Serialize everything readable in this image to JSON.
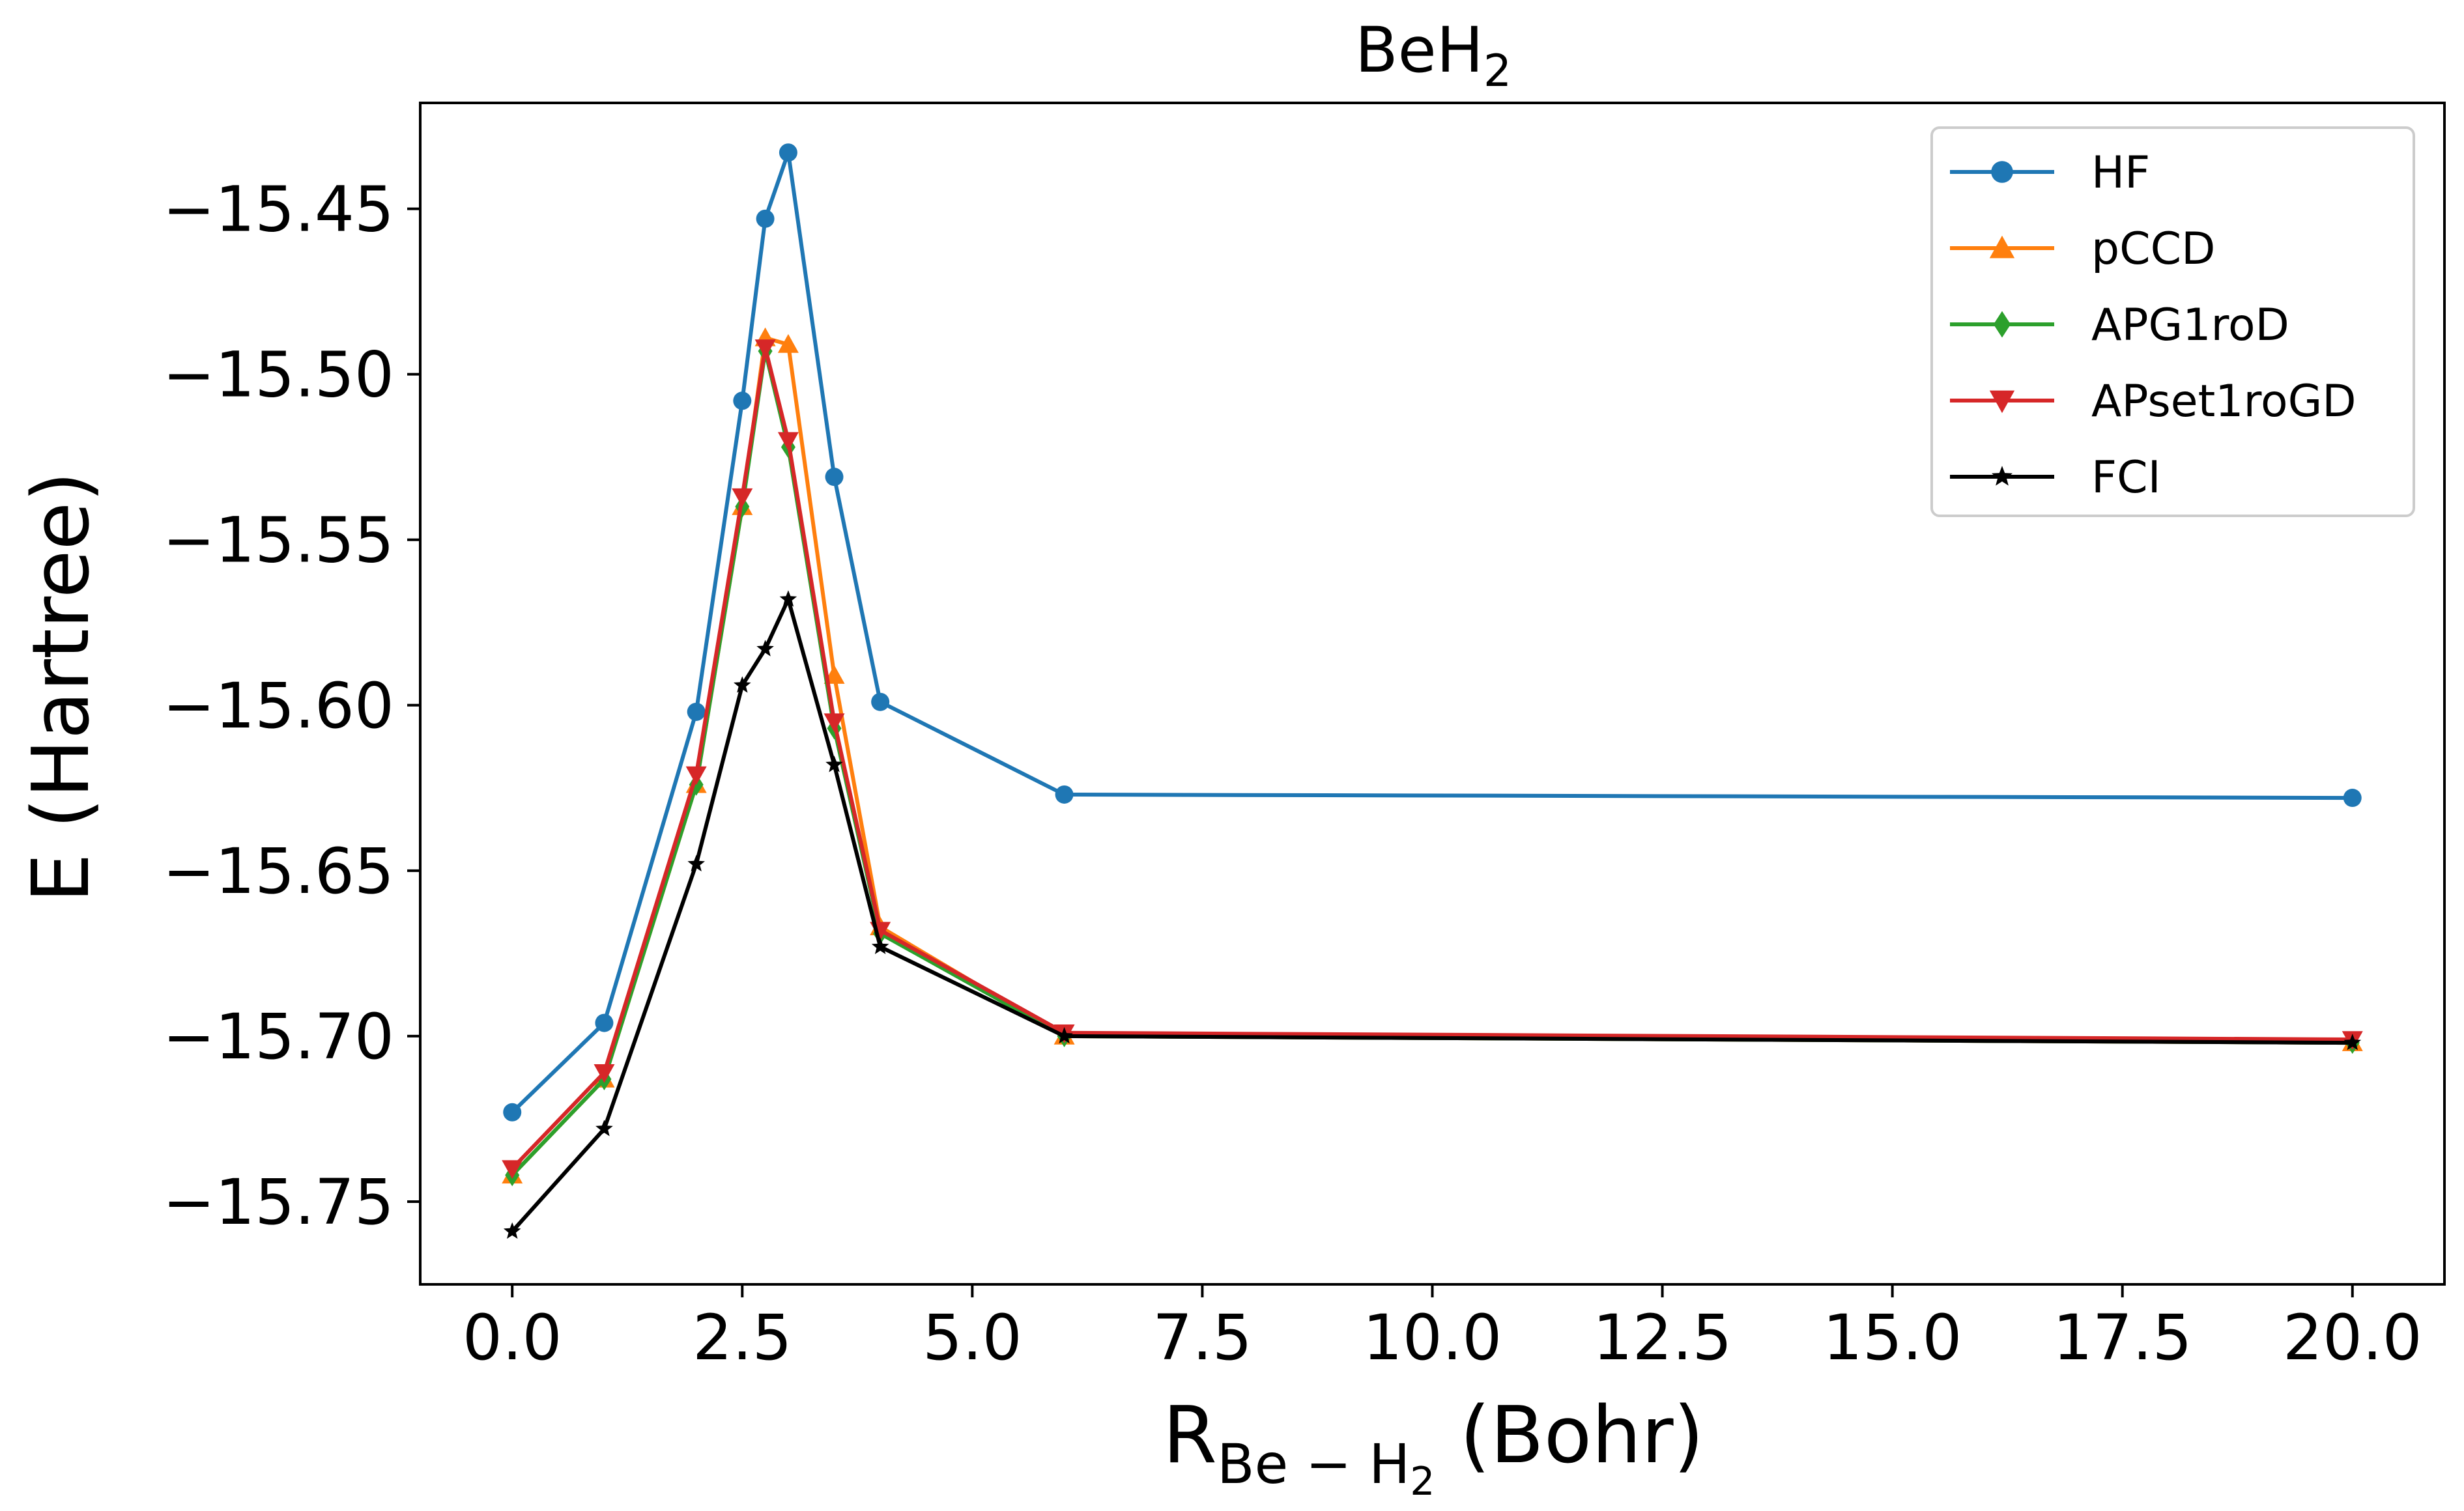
{
  "chart_data": {
    "type": "line",
    "title": "BeH",
    "title_sub": "2",
    "xlabel_main": "R",
    "xlabel_sub_text": "Be − H",
    "xlabel_sub_sub": "2",
    "xlabel_tail": " (Bohr)",
    "ylabel": "E (Hartree)",
    "xlim": [
      -1.0,
      21.0
    ],
    "ylim": [
      -15.775,
      -15.418
    ],
    "xticks": [
      0.0,
      2.5,
      5.0,
      7.5,
      10.0,
      12.5,
      15.0,
      17.5,
      20.0
    ],
    "xtick_labels": [
      "0.0",
      "2.5",
      "5.0",
      "7.5",
      "10.0",
      "12.5",
      "15.0",
      "17.5",
      "20.0"
    ],
    "yticks": [
      -15.45,
      -15.5,
      -15.55,
      -15.6,
      -15.65,
      -15.7,
      -15.75
    ],
    "ytick_labels": [
      "−15.45",
      "−15.50",
      "−15.55",
      "−15.60",
      "−15.65",
      "−15.70",
      "−15.75"
    ],
    "grid": false,
    "legend_position": "top-right",
    "x": [
      0.0,
      1.0,
      2.0,
      2.5,
      2.75,
      3.0,
      3.5,
      4.0,
      6.0,
      20.0
    ],
    "series": [
      {
        "name": "HF",
        "color": "#1f77b4",
        "marker": "circle",
        "values": [
          -15.723,
          -15.696,
          -15.602,
          -15.508,
          -15.453,
          -15.433,
          -15.531,
          -15.599,
          -15.627,
          -15.628
        ]
      },
      {
        "name": "pCCD",
        "color": "#ff7f0e",
        "marker": "triangle-up",
        "values": [
          -15.742,
          -15.713,
          -15.624,
          -15.54,
          -15.489,
          -15.491,
          -15.591,
          -15.667,
          -15.7,
          -15.702
        ]
      },
      {
        "name": "APG1roD",
        "color": "#2ca02c",
        "marker": "diamond",
        "values": [
          -15.742,
          -15.713,
          -15.624,
          -15.54,
          -15.493,
          -15.522,
          -15.607,
          -15.669,
          -15.7,
          -15.702
        ]
      },
      {
        "name": "APset1roGD",
        "color": "#d62728",
        "marker": "triangle-down",
        "values": [
          -15.74,
          -15.711,
          -15.621,
          -15.537,
          -15.492,
          -15.52,
          -15.605,
          -15.668,
          -15.699,
          -15.701
        ]
      },
      {
        "name": "FCI",
        "color": "#000000",
        "marker": "star",
        "values": [
          -15.759,
          -15.728,
          -15.648,
          -15.594,
          -15.583,
          -15.568,
          -15.618,
          -15.673,
          -15.7,
          -15.702
        ]
      }
    ]
  }
}
